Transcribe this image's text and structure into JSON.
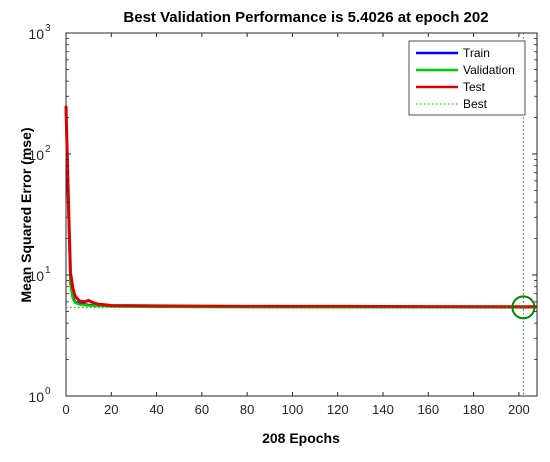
{
  "chart_data": {
    "type": "line",
    "title": "Best Validation Performance is 5.4026 at epoch 202",
    "xlabel": "208 Epochs",
    "ylabel": "Mean Squared Error  (mse)",
    "xlim": [
      0,
      208
    ],
    "ylim": [
      1,
      1000
    ],
    "yscale": "log",
    "grid": false,
    "legend_position": "top-right",
    "x_ticks": [
      0,
      20,
      40,
      60,
      80,
      100,
      120,
      140,
      160,
      180,
      200
    ],
    "y_ticks": [
      {
        "value": 1,
        "base": "10",
        "exp": "0"
      },
      {
        "value": 10,
        "base": "10",
        "exp": "1"
      },
      {
        "value": 100,
        "base": "10",
        "exp": "2"
      },
      {
        "value": 1000,
        "base": "10",
        "exp": "3"
      }
    ],
    "series": [
      {
        "name": "Train",
        "color": "#0000ff",
        "x": [
          0,
          1,
          2,
          3,
          4,
          6,
          10,
          15,
          20,
          40,
          80,
          120,
          160,
          202,
          208
        ],
        "y": [
          230,
          40,
          8.5,
          6.6,
          6.0,
          5.8,
          5.65,
          5.6,
          5.55,
          5.5,
          5.48,
          5.46,
          5.45,
          5.43,
          5.43
        ]
      },
      {
        "name": "Validation",
        "color": "#00cc00",
        "x": [
          0,
          1,
          2,
          3,
          4,
          6,
          10,
          15,
          20,
          40,
          80,
          120,
          160,
          202,
          208
        ],
        "y": [
          230,
          40,
          8.3,
          6.4,
          5.9,
          5.7,
          5.6,
          5.55,
          5.5,
          5.45,
          5.43,
          5.42,
          5.41,
          5.4026,
          5.405
        ]
      },
      {
        "name": "Test",
        "color": "#dd0000",
        "x": [
          0,
          1,
          2,
          3,
          4,
          5,
          6,
          8,
          10,
          12,
          14,
          16,
          20,
          40,
          80,
          120,
          160,
          202,
          208
        ],
        "y": [
          250,
          45,
          10.5,
          7.8,
          6.7,
          6.4,
          6.1,
          6.0,
          6.15,
          5.9,
          5.75,
          5.7,
          5.6,
          5.55,
          5.5,
          5.5,
          5.48,
          5.46,
          5.46
        ]
      }
    ],
    "best": {
      "name": "Best",
      "epoch": 202,
      "value": 5.4026,
      "color": "#00aa00"
    }
  }
}
